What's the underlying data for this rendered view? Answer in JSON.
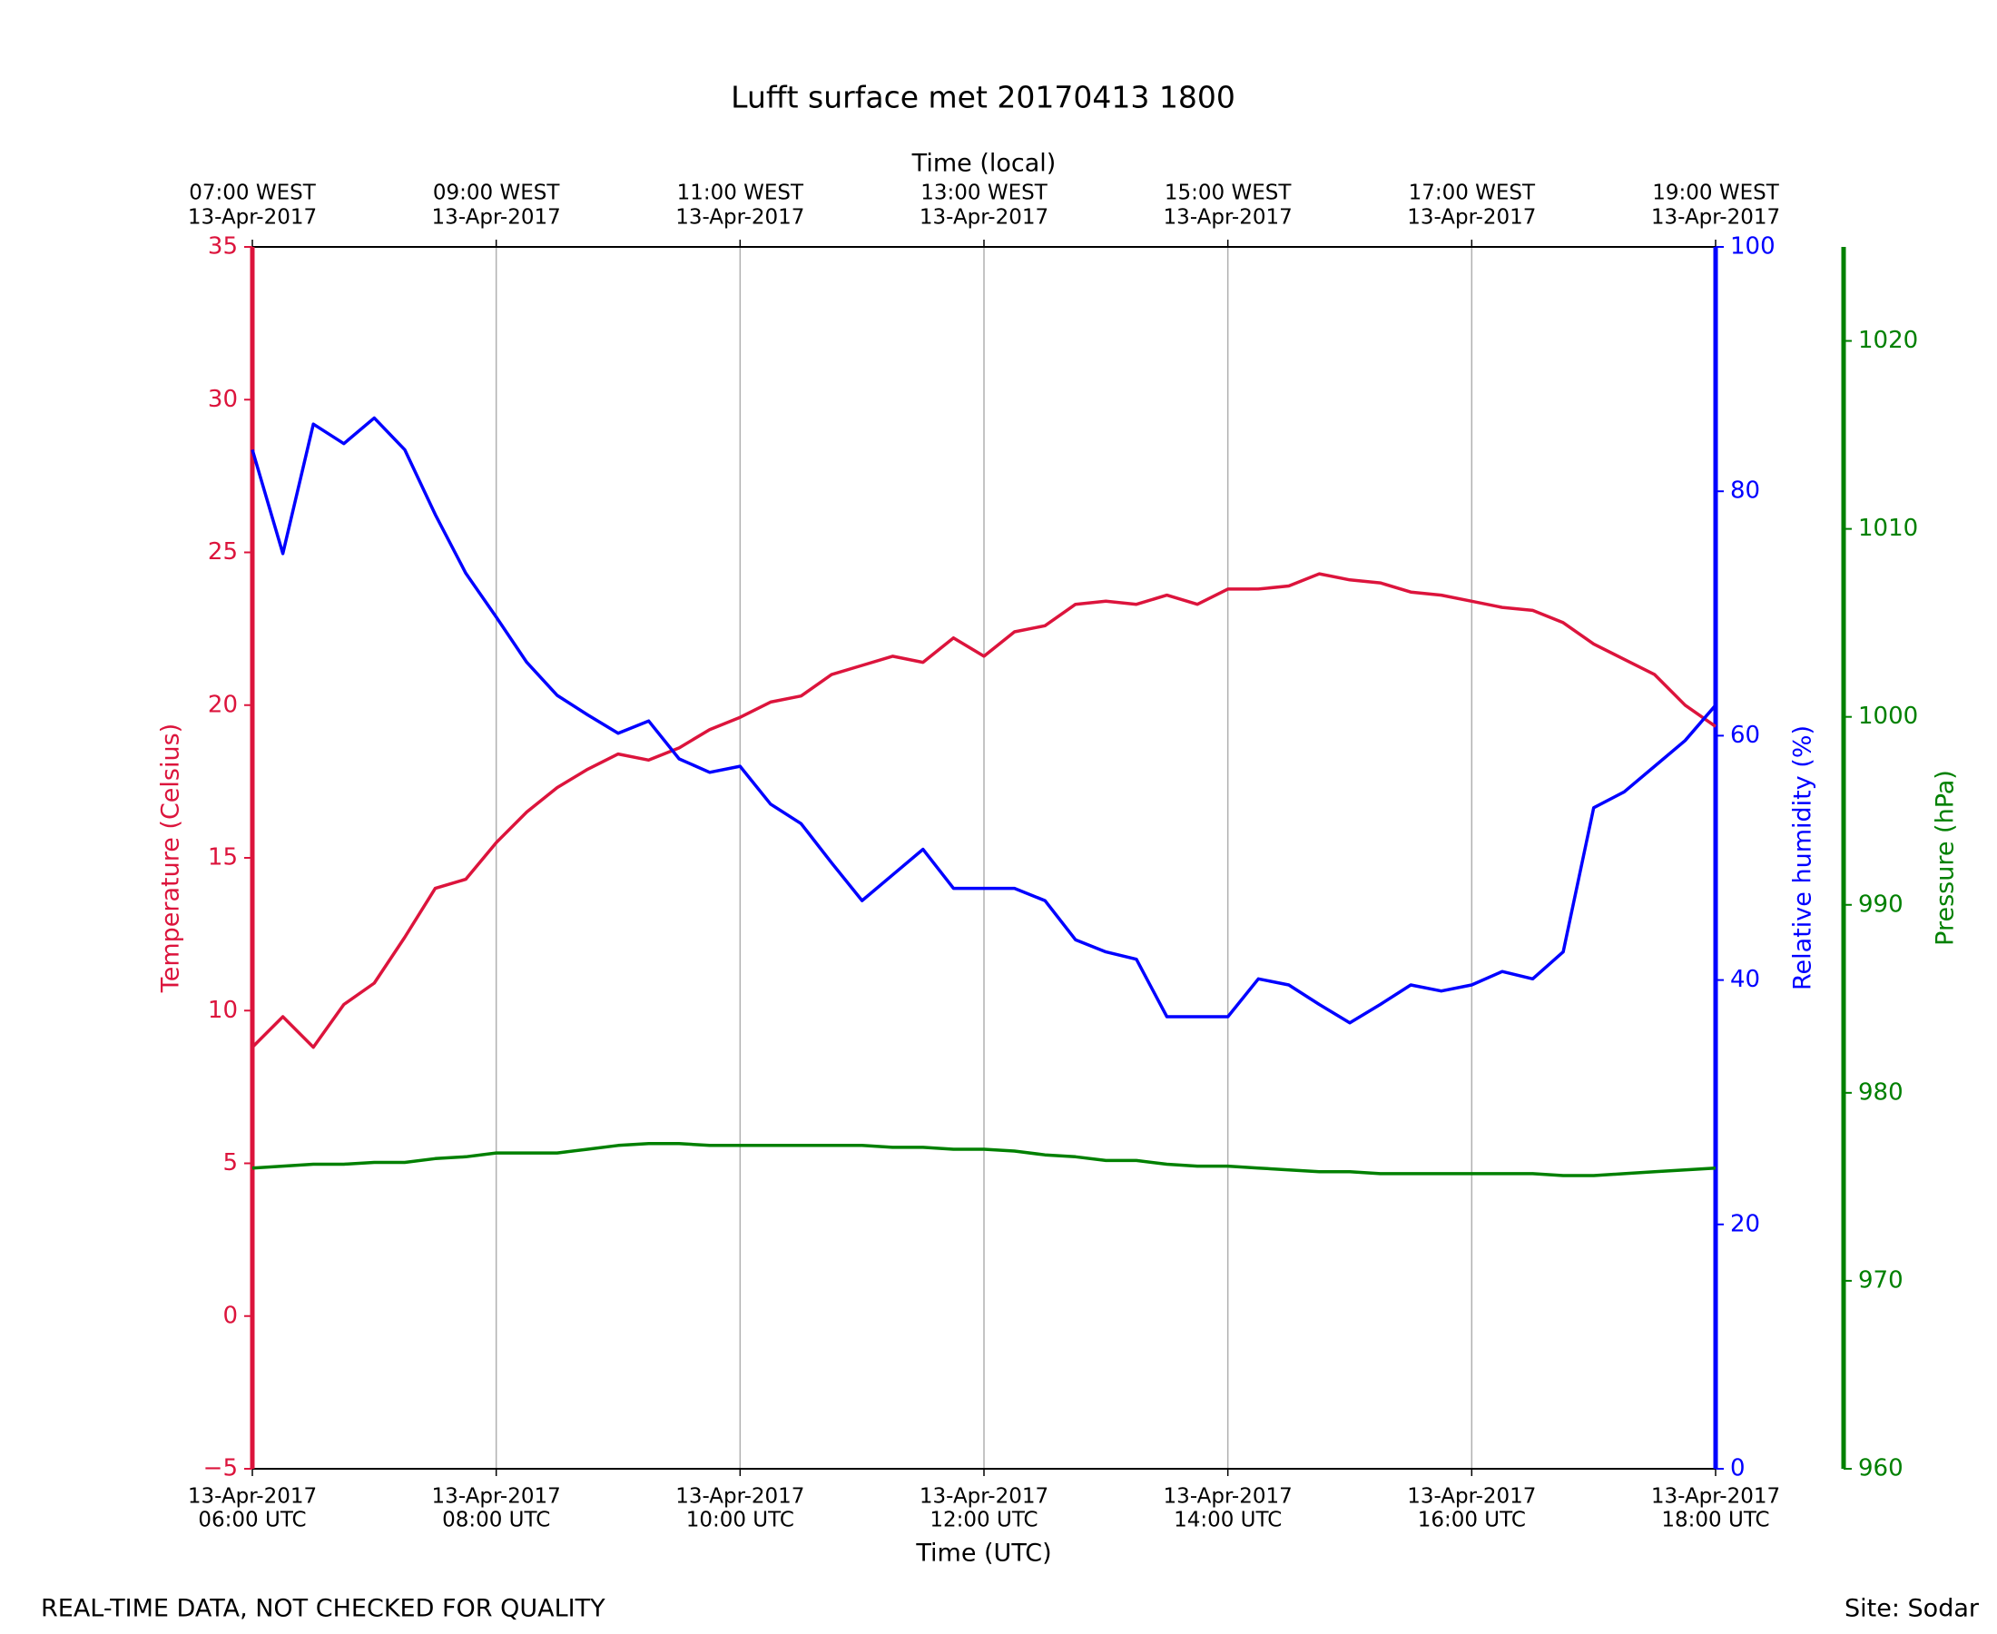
{
  "chart_data": {
    "type": "line",
    "title": "Lufft surface met 20170413 1800",
    "xlabel": "Time (UTC)",
    "x2label": "Time (local)",
    "ylabel": "Temperature (Celsius)",
    "y2label": "Relative humidity (%)",
    "y3label": "Pressure (hPa)",
    "note": "REAL-TIME DATA, NOT CHECKED FOR QUALITY",
    "site": "Site: Sodar",
    "grid": "x",
    "x": [
      6,
      6.25,
      6.5,
      6.75,
      7,
      7.25,
      7.5,
      7.75,
      8,
      8.25,
      8.5,
      8.75,
      9,
      9.25,
      9.5,
      9.75,
      10,
      10.25,
      10.5,
      10.75,
      11,
      11.25,
      11.5,
      11.75,
      12,
      12.25,
      12.5,
      12.75,
      13,
      13.25,
      13.5,
      13.75,
      14,
      14.25,
      14.5,
      14.75,
      15,
      15.25,
      15.5,
      15.75,
      16,
      16.25,
      16.5,
      16.75,
      17,
      17.25,
      17.5,
      17.75,
      18
    ],
    "xlim": [
      6,
      18
    ],
    "xticks": [
      {
        "value": 6,
        "label": [
          "13-Apr-2017",
          "06:00 UTC"
        ]
      },
      {
        "value": 8,
        "label": [
          "13-Apr-2017",
          "08:00 UTC"
        ]
      },
      {
        "value": 10,
        "label": [
          "13-Apr-2017",
          "10:00 UTC"
        ]
      },
      {
        "value": 12,
        "label": [
          "13-Apr-2017",
          "12:00 UTC"
        ]
      },
      {
        "value": 14,
        "label": [
          "13-Apr-2017",
          "14:00 UTC"
        ]
      },
      {
        "value": 16,
        "label": [
          "13-Apr-2017",
          "16:00 UTC"
        ]
      },
      {
        "value": 18,
        "label": [
          "13-Apr-2017",
          "18:00 UTC"
        ]
      }
    ],
    "x2ticks": [
      {
        "value": 6,
        "label": [
          "07:00 WEST",
          "13-Apr-2017"
        ]
      },
      {
        "value": 8,
        "label": [
          "09:00 WEST",
          "13-Apr-2017"
        ]
      },
      {
        "value": 10,
        "label": [
          "11:00 WEST",
          "13-Apr-2017"
        ]
      },
      {
        "value": 12,
        "label": [
          "13:00 WEST",
          "13-Apr-2017"
        ]
      },
      {
        "value": 14,
        "label": [
          "15:00 WEST",
          "13-Apr-2017"
        ]
      },
      {
        "value": 16,
        "label": [
          "17:00 WEST",
          "13-Apr-2017"
        ]
      },
      {
        "value": 18,
        "label": [
          "19:00 WEST",
          "13-Apr-2017"
        ]
      }
    ],
    "ylim": [
      -5,
      35
    ],
    "yticks": [
      {
        "value": -5,
        "label": "−5"
      },
      0,
      5,
      10,
      15,
      20,
      25,
      30,
      35
    ],
    "y2lim": [
      0,
      100
    ],
    "y2ticks": [
      0,
      20,
      40,
      60,
      80,
      100
    ],
    "y3lim": [
      960,
      1025
    ],
    "y3ticks": [
      960,
      970,
      980,
      990,
      1000,
      1010,
      1020
    ],
    "series": [
      {
        "name": "Temperature",
        "color": "#dc143c",
        "axis": "y",
        "values": [
          8.8,
          9.8,
          8.8,
          10.2,
          10.9,
          12.4,
          14.0,
          14.3,
          15.5,
          16.5,
          17.3,
          17.9,
          18.4,
          18.2,
          18.6,
          19.2,
          19.6,
          20.1,
          20.3,
          21.0,
          21.3,
          21.6,
          21.4,
          22.2,
          21.6,
          22.4,
          22.6,
          23.3,
          23.4,
          23.3,
          23.6,
          23.3,
          23.8,
          23.8,
          23.9,
          24.3,
          24.1,
          24.0,
          23.7,
          23.6,
          23.4,
          23.2,
          23.1,
          22.7,
          22.0,
          21.5,
          21.0,
          20.0,
          19.3
        ]
      },
      {
        "name": "Relative humidity",
        "color": "#0000ff",
        "axis": "y2",
        "values": [
          83.4,
          74.9,
          85.5,
          83.9,
          86.0,
          83.4,
          78.1,
          73.3,
          69.7,
          66.0,
          63.3,
          61.7,
          60.2,
          61.2,
          58.1,
          57.0,
          57.5,
          54.4,
          52.8,
          49.6,
          46.5,
          48.6,
          50.7,
          47.5,
          47.5,
          47.5,
          46.5,
          43.3,
          42.3,
          41.7,
          37.0,
          37.0,
          37.0,
          40.1,
          39.6,
          38.0,
          36.5,
          38.0,
          39.6,
          39.1,
          39.6,
          40.7,
          40.1,
          42.3,
          54.1,
          55.4,
          57.5,
          59.6,
          62.5
        ]
      },
      {
        "name": "Pressure",
        "color": "#008000",
        "axis": "y3",
        "values": [
          976.0,
          976.1,
          976.2,
          976.2,
          976.3,
          976.3,
          976.5,
          976.6,
          976.8,
          976.8,
          976.8,
          977.0,
          977.2,
          977.3,
          977.3,
          977.2,
          977.2,
          977.2,
          977.2,
          977.2,
          977.2,
          977.1,
          977.1,
          977.0,
          977.0,
          976.9,
          976.7,
          976.6,
          976.4,
          976.4,
          976.2,
          976.1,
          976.1,
          976.0,
          975.9,
          975.8,
          975.8,
          975.7,
          975.7,
          975.7,
          975.7,
          975.7,
          975.7,
          975.6,
          975.6,
          975.7,
          975.8,
          975.9,
          976.0
        ]
      }
    ]
  }
}
